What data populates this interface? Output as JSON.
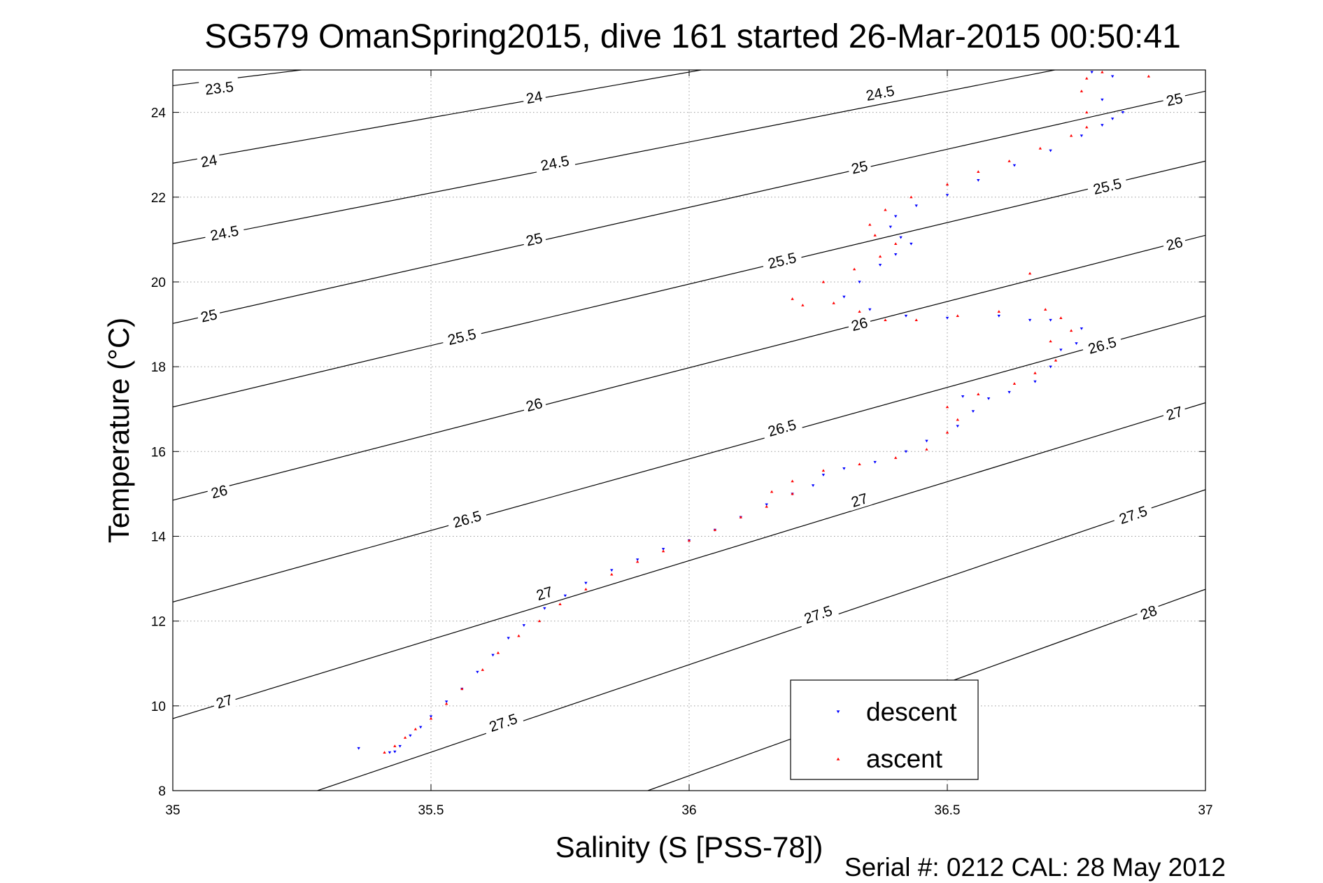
{
  "title": "SG579 OmanSpring2015, dive 161 started 26-Mar-2015 00:50:41",
  "footer": "Serial #: 0212  CAL: 28 May 2012",
  "chart_data": {
    "type": "scatter",
    "xlabel": "Salinity (S [PSS-78])",
    "ylabel": "Temperature (°C)",
    "xlim": [
      35,
      37
    ],
    "ylim": [
      8,
      25
    ],
    "x_ticks": [
      {
        "value": 35,
        "label": "35"
      },
      {
        "value": 35.5,
        "label": "35.5"
      },
      {
        "value": 36,
        "label": "36"
      },
      {
        "value": 36.5,
        "label": "36.5"
      },
      {
        "value": 37,
        "label": "37"
      }
    ],
    "y_ticks": [
      {
        "value": 8,
        "label": "8"
      },
      {
        "value": 10,
        "label": "10"
      },
      {
        "value": 12,
        "label": "12"
      },
      {
        "value": 14,
        "label": "14"
      },
      {
        "value": 16,
        "label": "16"
      },
      {
        "value": 18,
        "label": "18"
      },
      {
        "value": 20,
        "label": "20"
      },
      {
        "value": 22,
        "label": "22"
      },
      {
        "value": 24,
        "label": "24"
      }
    ],
    "grid": true,
    "legend": {
      "placement": "bottom-right",
      "entries": [
        {
          "label": "descent",
          "color": "#0000ff",
          "marker": "triangle-down"
        },
        {
          "label": "ascent",
          "color": "#ff0000",
          "marker": "triangle-up"
        }
      ]
    },
    "contours": [
      {
        "level": 23.5,
        "points": [
          [
            35,
            24.63
          ],
          [
            37,
            27.6
          ]
        ],
        "labels": [
          {
            "label": "23.5",
            "s": 35.09,
            "t": 24.57
          }
        ]
      },
      {
        "level": 24,
        "points": [
          [
            35,
            22.8
          ],
          [
            37,
            27.1
          ]
        ],
        "labels": [
          {
            "label": "24",
            "s": 35.07,
            "t": 22.85
          },
          {
            "label": "24",
            "s": 35.7,
            "t": 24.35
          }
        ]
      },
      {
        "level": 24.5,
        "points": [
          [
            35,
            20.9
          ],
          [
            37,
            25.7
          ]
        ],
        "labels": [
          {
            "label": "24.5",
            "s": 35.1,
            "t": 21.15
          },
          {
            "label": "24.5",
            "s": 35.74,
            "t": 22.8
          },
          {
            "label": "24.5",
            "s": 36.37,
            "t": 24.45
          }
        ]
      },
      {
        "level": 25,
        "points": [
          [
            35,
            19.02
          ],
          [
            37,
            24.5
          ]
        ],
        "labels": [
          {
            "label": "25",
            "s": 35.07,
            "t": 19.2
          },
          {
            "label": "25",
            "s": 35.7,
            "t": 21.0
          },
          {
            "label": "25",
            "s": 36.33,
            "t": 22.7
          },
          {
            "label": "25",
            "s": 36.94,
            "t": 24.3
          }
        ]
      },
      {
        "level": 25.5,
        "points": [
          [
            35,
            17.05
          ],
          [
            37,
            22.85
          ]
        ],
        "labels": [
          {
            "label": "25.5",
            "s": 35.56,
            "t": 18.7
          },
          {
            "label": "25.5",
            "s": 36.18,
            "t": 20.5
          },
          {
            "label": "25.5",
            "s": 36.81,
            "t": 22.25
          }
        ]
      },
      {
        "level": 26,
        "points": [
          [
            35,
            14.85
          ],
          [
            37,
            21.1
          ]
        ],
        "labels": [
          {
            "label": "26",
            "s": 35.09,
            "t": 15.05
          },
          {
            "label": "26",
            "s": 35.7,
            "t": 17.1
          },
          {
            "label": "26",
            "s": 36.33,
            "t": 19.0
          },
          {
            "label": "26",
            "s": 36.94,
            "t": 20.9
          }
        ]
      },
      {
        "level": 26.5,
        "points": [
          [
            35,
            12.45
          ],
          [
            37,
            19.2
          ]
        ],
        "labels": [
          {
            "label": "26.5",
            "s": 35.57,
            "t": 14.4
          },
          {
            "label": "26.5",
            "s": 36.18,
            "t": 16.55
          },
          {
            "label": "26.5",
            "s": 36.8,
            "t": 18.5
          }
        ]
      },
      {
        "level": 27,
        "points": [
          [
            35,
            9.7
          ],
          [
            37,
            17.15
          ]
        ],
        "labels": [
          {
            "label": "27",
            "s": 35.1,
            "t": 10.1
          },
          {
            "label": "27",
            "s": 35.72,
            "t": 12.65
          },
          {
            "label": "27",
            "s": 36.33,
            "t": 14.85
          },
          {
            "label": "27",
            "s": 36.94,
            "t": 16.9
          }
        ]
      },
      {
        "level": 27.5,
        "points": [
          [
            35.28,
            8.0
          ],
          [
            37,
            15.1
          ]
        ],
        "labels": [
          {
            "label": "27.5",
            "s": 35.64,
            "t": 9.6
          },
          {
            "label": "27.5",
            "s": 36.25,
            "t": 12.15
          },
          {
            "label": "27.5",
            "s": 36.86,
            "t": 14.5
          }
        ]
      },
      {
        "level": 28,
        "points": [
          [
            35.92,
            8.0
          ],
          [
            37,
            12.75
          ]
        ],
        "labels": [
          {
            "label": "28",
            "s": 36.89,
            "t": 12.2
          }
        ]
      }
    ],
    "series": [
      {
        "name": "descent",
        "color": "#0000ff",
        "marker": "triangle-down",
        "points": [
          [
            35.36,
            9.0
          ],
          [
            35.42,
            8.9
          ],
          [
            35.43,
            8.92
          ],
          [
            35.44,
            9.05
          ],
          [
            35.46,
            9.3
          ],
          [
            35.48,
            9.5
          ],
          [
            35.5,
            9.75
          ],
          [
            35.53,
            10.1
          ],
          [
            35.56,
            10.4
          ],
          [
            35.59,
            10.8
          ],
          [
            35.62,
            11.2
          ],
          [
            35.65,
            11.6
          ],
          [
            35.68,
            11.9
          ],
          [
            35.72,
            12.3
          ],
          [
            35.76,
            12.6
          ],
          [
            35.8,
            12.9
          ],
          [
            35.85,
            13.2
          ],
          [
            35.9,
            13.45
          ],
          [
            35.95,
            13.7
          ],
          [
            36.0,
            13.9
          ],
          [
            36.05,
            14.15
          ],
          [
            36.1,
            14.45
          ],
          [
            36.15,
            14.75
          ],
          [
            36.2,
            15.0
          ],
          [
            36.24,
            15.2
          ],
          [
            36.26,
            15.45
          ],
          [
            36.3,
            15.6
          ],
          [
            36.36,
            15.75
          ],
          [
            36.42,
            16.0
          ],
          [
            36.46,
            16.25
          ],
          [
            36.52,
            16.6
          ],
          [
            36.55,
            16.95
          ],
          [
            36.53,
            17.3
          ],
          [
            36.58,
            17.25
          ],
          [
            36.62,
            17.4
          ],
          [
            36.67,
            17.65
          ],
          [
            36.7,
            18.0
          ],
          [
            36.72,
            18.4
          ],
          [
            36.75,
            18.55
          ],
          [
            36.76,
            18.9
          ],
          [
            36.7,
            19.1
          ],
          [
            36.66,
            19.1
          ],
          [
            36.6,
            19.2
          ],
          [
            36.5,
            19.15
          ],
          [
            36.42,
            19.2
          ],
          [
            36.35,
            19.35
          ],
          [
            36.3,
            19.65
          ],
          [
            36.33,
            20.0
          ],
          [
            36.37,
            20.4
          ],
          [
            36.4,
            20.65
          ],
          [
            36.43,
            20.9
          ],
          [
            36.41,
            21.05
          ],
          [
            36.39,
            21.3
          ],
          [
            36.4,
            21.55
          ],
          [
            36.44,
            21.8
          ],
          [
            36.5,
            22.05
          ],
          [
            36.56,
            22.4
          ],
          [
            36.63,
            22.75
          ],
          [
            36.7,
            23.1
          ],
          [
            36.76,
            23.45
          ],
          [
            36.8,
            23.7
          ],
          [
            36.82,
            23.85
          ],
          [
            36.84,
            24.0
          ],
          [
            36.8,
            24.3
          ],
          [
            36.82,
            24.85
          ],
          [
            36.78,
            24.95
          ]
        ]
      },
      {
        "name": "ascent",
        "color": "#ff0000",
        "marker": "triangle-up",
        "points": [
          [
            35.41,
            8.9
          ],
          [
            35.43,
            9.05
          ],
          [
            35.45,
            9.25
          ],
          [
            35.47,
            9.45
          ],
          [
            35.5,
            9.7
          ],
          [
            35.53,
            10.05
          ],
          [
            35.56,
            10.4
          ],
          [
            35.6,
            10.85
          ],
          [
            35.63,
            11.25
          ],
          [
            35.67,
            11.65
          ],
          [
            35.71,
            12.0
          ],
          [
            35.75,
            12.4
          ],
          [
            35.8,
            12.75
          ],
          [
            35.85,
            13.1
          ],
          [
            35.9,
            13.4
          ],
          [
            35.95,
            13.65
          ],
          [
            36.0,
            13.9
          ],
          [
            36.05,
            14.15
          ],
          [
            36.1,
            14.45
          ],
          [
            36.15,
            14.7
          ],
          [
            36.2,
            15.0
          ],
          [
            36.16,
            15.05
          ],
          [
            36.2,
            15.3
          ],
          [
            36.26,
            15.55
          ],
          [
            36.33,
            15.7
          ],
          [
            36.4,
            15.85
          ],
          [
            36.46,
            16.05
          ],
          [
            36.5,
            16.45
          ],
          [
            36.52,
            16.75
          ],
          [
            36.5,
            17.05
          ],
          [
            36.56,
            17.35
          ],
          [
            36.63,
            17.6
          ],
          [
            36.67,
            17.85
          ],
          [
            36.71,
            18.15
          ],
          [
            36.7,
            18.6
          ],
          [
            36.74,
            18.85
          ],
          [
            36.72,
            19.15
          ],
          [
            36.69,
            19.35
          ],
          [
            36.6,
            19.3
          ],
          [
            36.52,
            19.2
          ],
          [
            36.44,
            19.1
          ],
          [
            36.38,
            19.1
          ],
          [
            36.33,
            19.3
          ],
          [
            36.28,
            19.5
          ],
          [
            36.22,
            19.45
          ],
          [
            36.2,
            19.6
          ],
          [
            36.26,
            20.0
          ],
          [
            36.32,
            20.3
          ],
          [
            36.37,
            20.6
          ],
          [
            36.4,
            20.9
          ],
          [
            36.36,
            21.1
          ],
          [
            36.35,
            21.35
          ],
          [
            36.38,
            21.7
          ],
          [
            36.43,
            22.0
          ],
          [
            36.5,
            22.3
          ],
          [
            36.56,
            22.6
          ],
          [
            36.62,
            22.85
          ],
          [
            36.68,
            23.15
          ],
          [
            36.74,
            23.45
          ],
          [
            36.77,
            23.65
          ],
          [
            36.77,
            24.0
          ],
          [
            36.76,
            24.5
          ],
          [
            36.77,
            24.8
          ],
          [
            36.8,
            24.95
          ],
          [
            36.89,
            24.85
          ],
          [
            36.66,
            20.2
          ]
        ]
      }
    ]
  }
}
